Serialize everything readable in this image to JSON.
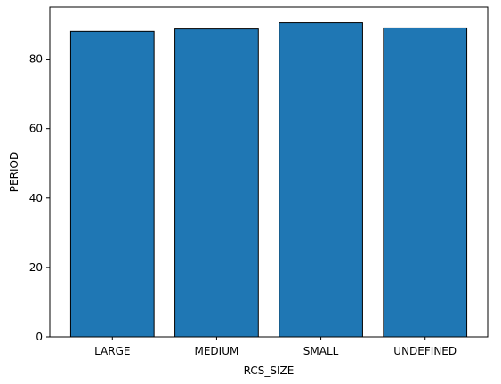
{
  "chart_data": {
    "type": "bar",
    "categories": [
      "LARGE",
      "MEDIUM",
      "SMALL",
      "UNDEFINED"
    ],
    "values": [
      88.0,
      88.7,
      90.5,
      89.0
    ],
    "title": "",
    "xlabel": "RCS_SIZE",
    "ylabel": "PERIOD",
    "ylim": [
      0,
      95
    ],
    "yticks": [
      0,
      20,
      40,
      60,
      80
    ],
    "grid": false,
    "bar_color": "#1f77b4",
    "edge_color": "#000000"
  }
}
